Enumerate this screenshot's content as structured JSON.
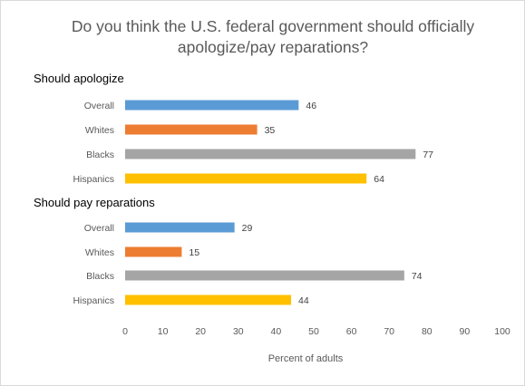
{
  "chart_data": {
    "type": "bar",
    "orientation": "horizontal",
    "title": "Do you think the U.S. federal government should officially apologize/pay reparations?",
    "xlabel": "Percent of adults",
    "xlim": [
      0,
      100
    ],
    "xticks": [
      0,
      10,
      20,
      30,
      40,
      50,
      60,
      70,
      80,
      90,
      100
    ],
    "grid": false,
    "legend": "none",
    "groups": [
      {
        "name": "Should apologize",
        "categories": [
          "Overall",
          "Whites",
          "Blacks",
          "Hispanics"
        ],
        "values": [
          46,
          35,
          77,
          64
        ]
      },
      {
        "name": "Should pay reparations",
        "categories": [
          "Overall",
          "Whites",
          "Blacks",
          "Hispanics"
        ],
        "values": [
          29,
          15,
          74,
          44
        ]
      }
    ],
    "colors": {
      "Overall": "#5b9bd5",
      "Whites": "#ed7d31",
      "Blacks": "#a5a5a5",
      "Hispanics": "#ffc000"
    }
  }
}
